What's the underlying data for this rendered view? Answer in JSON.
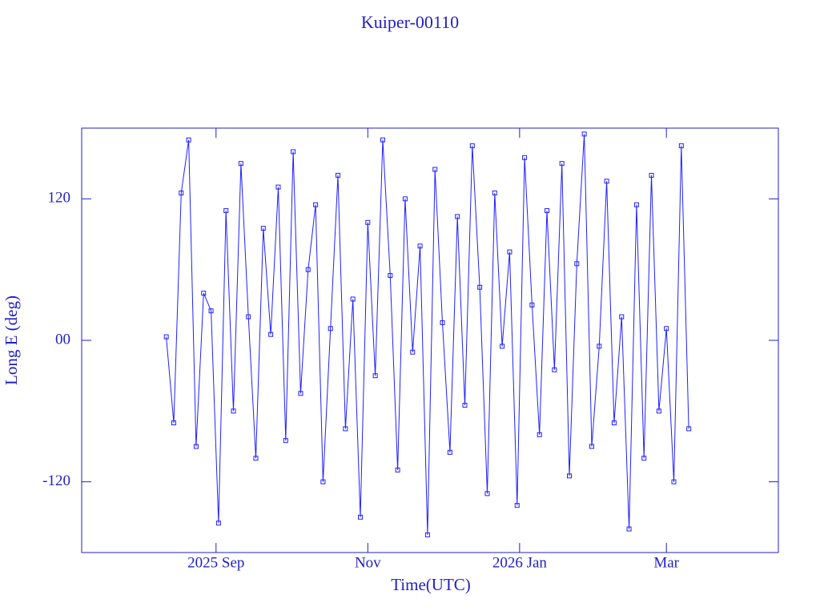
{
  "chart_data": {
    "type": "line",
    "title": "Kuiper-00110",
    "x_label": "Time(UTC)",
    "y_label": "Long E (deg)",
    "x": [
      11,
      14,
      17,
      20,
      23,
      26,
      29,
      32,
      35,
      38,
      41,
      44,
      47,
      50,
      53,
      56,
      59,
      62,
      65,
      68,
      71,
      74,
      77,
      80,
      83,
      86,
      89,
      92,
      95,
      98,
      101,
      104,
      107,
      110,
      113,
      116,
      119,
      122,
      125,
      128,
      131,
      134,
      137,
      140,
      143,
      146,
      149,
      152,
      155,
      158,
      161,
      164,
      167,
      170,
      173,
      176,
      179,
      182,
      185,
      188,
      191,
      194,
      197,
      200,
      203,
      206,
      209,
      212,
      215,
      218,
      221
    ],
    "series": [
      {
        "color": "#2020ff",
        "values": [
          3,
          -70,
          125,
          170,
          -90,
          40,
          25,
          -155,
          110,
          -60,
          150,
          20,
          -100,
          95,
          5,
          130,
          -85,
          160,
          -45,
          60,
          115,
          -120,
          10,
          140,
          -75,
          35,
          -150,
          100,
          -30,
          170,
          55,
          -110,
          120,
          -10,
          80,
          -165,
          145,
          15,
          -95,
          105,
          -55,
          165,
          45,
          -130,
          125,
          -5,
          75,
          -140,
          155,
          30,
          -80,
          110,
          -25,
          150,
          -115,
          65,
          175,
          -90,
          -5,
          135,
          -70,
          20,
          -160,
          115,
          -100,
          140,
          -60,
          10,
          -120,
          165,
          -75
        ]
      }
    ],
    "xlim": [
      -23,
      257
    ],
    "xticks": [
      {
        "value": 31,
        "label": "2025 Sep"
      },
      {
        "value": 92,
        "label": "Nov"
      },
      {
        "value": 153,
        "label": "2026 Jan"
      },
      {
        "value": 212,
        "label": "Mar"
      }
    ],
    "ylim": [
      -180,
      180
    ],
    "yticks": [
      -120,
      {
        "value": 0,
        "label": "00"
      },
      120
    ]
  }
}
